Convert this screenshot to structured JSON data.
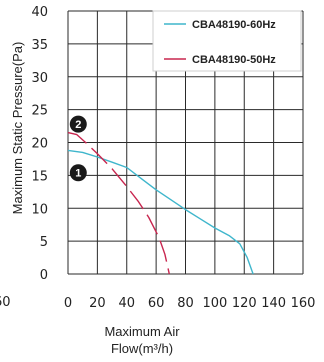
{
  "chart_data": {
    "type": "line",
    "title": "",
    "xlabel": "Maximum Air Flow(m³/h)",
    "xlabel_line1": "Maximum Air",
    "xlabel_line2": "Flow(m³/h)",
    "ylabel": "Maximum Static Pressure(Pa)",
    "xlim": [
      0,
      160
    ],
    "ylim": [
      0,
      40
    ],
    "x_ticks": [
      "0",
      "20",
      "40",
      "60",
      "80",
      "100",
      "120",
      "140",
      "160"
    ],
    "y_ticks": [
      "0",
      "5",
      "10",
      "15",
      "20",
      "25",
      "30",
      "35",
      "40"
    ],
    "grid": true,
    "legend_position": "top-right",
    "series": [
      {
        "name": "CBA48190-60Hz",
        "color": "#3fb6cc",
        "points": [
          [
            0,
            18.8
          ],
          [
            10,
            18.5
          ],
          [
            20,
            17.8
          ],
          [
            30,
            17.0
          ],
          [
            40,
            16.2
          ],
          [
            50,
            14.5
          ],
          [
            60,
            12.8
          ],
          [
            70,
            11.3
          ],
          [
            80,
            9.8
          ],
          [
            90,
            8.4
          ],
          [
            100,
            7.0
          ],
          [
            110,
            5.8
          ],
          [
            117,
            4.6
          ],
          [
            122,
            2.5
          ],
          [
            126,
            0
          ]
        ]
      },
      {
        "name": "CBA48190-50Hz",
        "color": "#c8264f",
        "points": [
          [
            0,
            21.5
          ],
          [
            6,
            21.2
          ],
          [
            12,
            20.0
          ],
          [
            20,
            18.3
          ],
          [
            30,
            16.0
          ],
          [
            40,
            13.3
          ],
          [
            48,
            11.0
          ],
          [
            55,
            8.6
          ],
          [
            62,
            5.5
          ],
          [
            66,
            3.0
          ],
          [
            69,
            0
          ]
        ]
      }
    ],
    "markers": [
      {
        "label": "2",
        "x": 7,
        "y": 22.8
      },
      {
        "label": "1",
        "x": 7,
        "y": 15.4
      }
    ]
  },
  "edge_fragments": {
    "left_bottom": "60",
    "right_top": "",
    "right_mid": ""
  }
}
